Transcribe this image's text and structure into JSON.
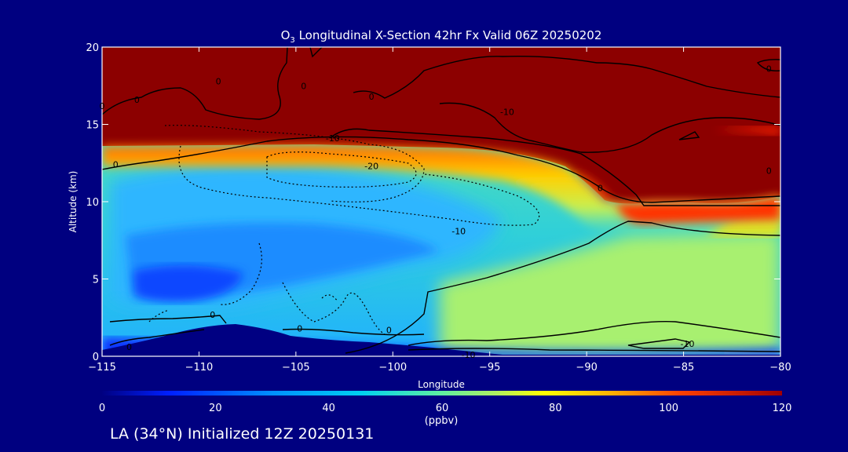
{
  "footer": "LA (34°N) Initialized 12Z 20250131",
  "chart_data": {
    "type": "heatmap",
    "title_base": "O",
    "title_sub": "3",
    "title_rest": " Longitudinal X-Section 42hr  Fx Valid 06Z 20250202",
    "xlabel": "Longitude",
    "ylabel": "Altitude (km)",
    "xlim": [
      -115,
      -80
    ],
    "ylim": [
      0,
      20
    ],
    "xticks": [
      -115,
      -110,
      -105,
      -100,
      -95,
      -90,
      -85,
      -80
    ],
    "xtick_labels": [
      "−115",
      "−110",
      "−105",
      "−100",
      "−95",
      "−90",
      "−85",
      "−80"
    ],
    "yticks": [
      0,
      5,
      10,
      15,
      20
    ],
    "colorbar": {
      "range": [
        0,
        120
      ],
      "ticks": [
        0,
        20,
        40,
        60,
        80,
        100,
        120
      ],
      "unit": "(ppbv)"
    },
    "contour_labels": [
      {
        "text": "0",
        "x": -115,
        "y": 16.2
      },
      {
        "text": "0",
        "x": -113.2,
        "y": 16.6
      },
      {
        "text": "0",
        "x": -109,
        "y": 17.8
      },
      {
        "text": "0",
        "x": -104.6,
        "y": 17.5
      },
      {
        "text": "0",
        "x": -101.1,
        "y": 16.8
      },
      {
        "text": "-10",
        "x": -94.1,
        "y": 15.8
      },
      {
        "text": "0",
        "x": -80.6,
        "y": 18.6
      },
      {
        "text": "-10",
        "x": -103.1,
        "y": 14.1
      },
      {
        "text": "-20",
        "x": -101.1,
        "y": 12.3
      },
      {
        "text": "0",
        "x": -114.3,
        "y": 12.4
      },
      {
        "text": "-10",
        "x": -96.6,
        "y": 8.1
      },
      {
        "text": "0",
        "x": -89.3,
        "y": 10.9
      },
      {
        "text": "0",
        "x": -80.6,
        "y": 12.0
      },
      {
        "text": "0",
        "x": -109.3,
        "y": 2.7
      },
      {
        "text": "0",
        "x": -104.8,
        "y": 1.8
      },
      {
        "text": "0",
        "x": -100.2,
        "y": 1.7
      },
      {
        "text": "0",
        "x": -113.6,
        "y": 0.6
      },
      {
        "text": "-10",
        "x": -84.8,
        "y": 0.8
      },
      {
        "text": "-10",
        "x": -96.1,
        "y": 0.1
      }
    ],
    "grid": false,
    "legend": "colorbar-bottom"
  }
}
